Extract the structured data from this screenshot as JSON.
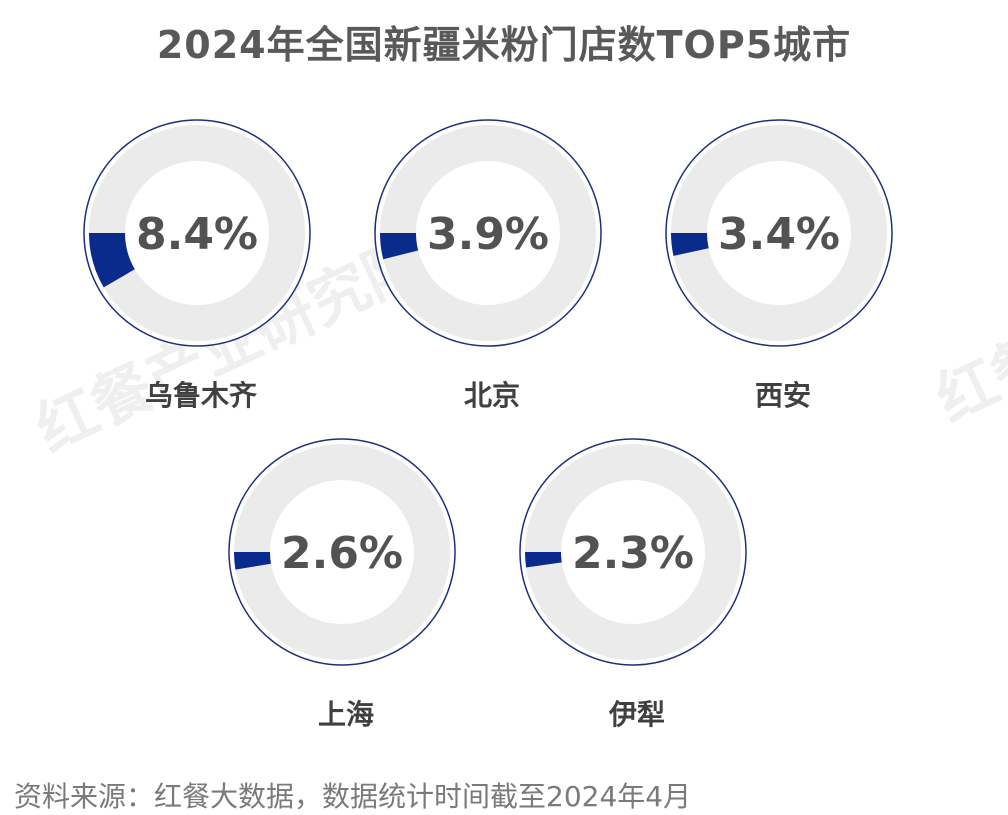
{
  "chart_data": {
    "type": "pie",
    "title": "2024年全国新疆米粉门店数TOP5城市",
    "series": [
      {
        "category": "乌鲁木齐",
        "value": 8.4,
        "label": "8.4%"
      },
      {
        "category": "北京",
        "value": 3.9,
        "label": "3.9%"
      },
      {
        "category": "西安",
        "value": 3.4,
        "label": "3.4%"
      },
      {
        "category": "上海",
        "value": 2.6,
        "label": "2.6%"
      },
      {
        "category": "伊犁",
        "value": 2.3,
        "label": "2.3%"
      }
    ],
    "unit": "%"
  },
  "watermark": "红餐产业研究院",
  "source": "资料来源：红餐大数据，数据统计时间截至2024年4月",
  "colors": {
    "accent": "#0a2a8c",
    "track": "#ebebeb",
    "border": "#1c2f7a",
    "title": "#595959",
    "text": "#404040"
  }
}
